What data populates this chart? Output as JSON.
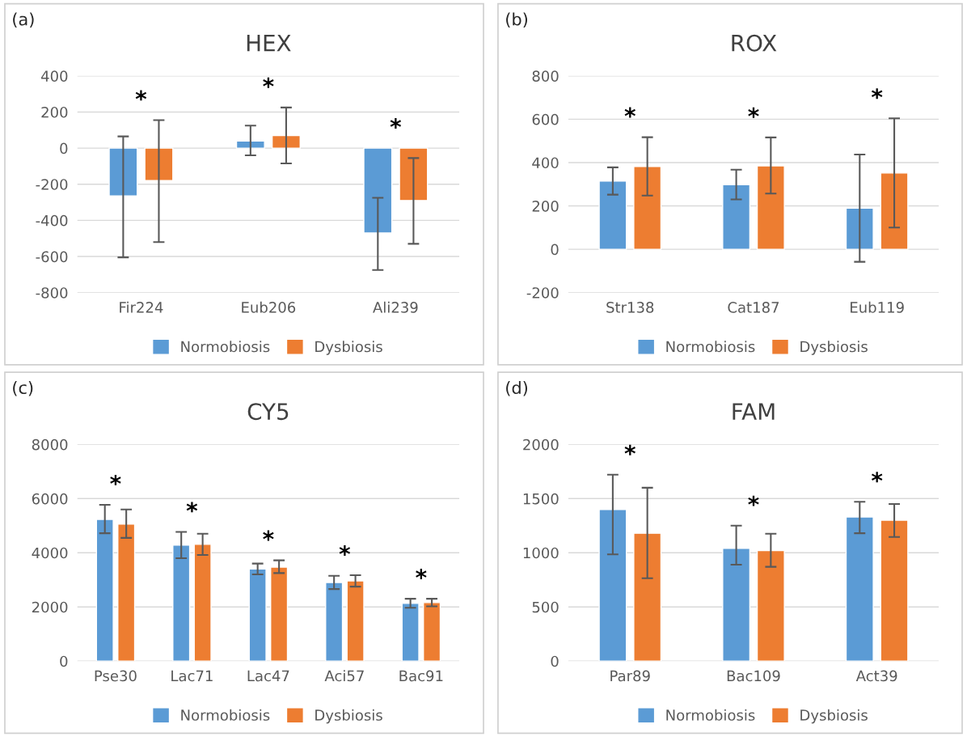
{
  "chart_data": [
    {
      "type": "bar",
      "title": "HEX",
      "categories": [
        "Fir224",
        "Eub206",
        "Ali239"
      ],
      "ylim": [
        -800,
        400
      ],
      "yticks": [
        -800,
        -600,
        -400,
        -200,
        0,
        200,
        400
      ],
      "grid": "y",
      "legend": "bottom",
      "series": [
        {
          "name": "Normobiosis",
          "color": "#5b9bd5",
          "values": [
            -265,
            40,
            -470
          ],
          "errors": [
            [
              -605,
              65
            ],
            [
              -40,
              125
            ],
            [
              -675,
              -275
            ]
          ]
        },
        {
          "name": "Dysbiosis",
          "color": "#ed7d31",
          "values": [
            -180,
            70,
            -290
          ],
          "errors": [
            [
              -520,
              155
            ],
            [
              -85,
              225
            ],
            [
              -530,
              -55
            ]
          ]
        }
      ],
      "annotations": [
        "(a)",
        "*",
        "*",
        "*"
      ]
    },
    {
      "type": "bar",
      "title": "ROX",
      "categories": [
        "Str138",
        "Cat187",
        "Eub119"
      ],
      "ylim": [
        -200,
        800
      ],
      "yticks": [
        -200,
        0,
        200,
        400,
        600,
        800
      ],
      "grid": "y",
      "legend": "bottom",
      "series": [
        {
          "name": "Normobiosis",
          "color": "#5b9bd5",
          "values": [
            315,
            298,
            190
          ],
          "errors": [
            [
              252,
              378
            ],
            [
              230,
              367
            ],
            [
              -58,
              437
            ]
          ]
        },
        {
          "name": "Dysbiosis",
          "color": "#ed7d31",
          "values": [
            382,
            385,
            352
          ],
          "errors": [
            [
              248,
              517
            ],
            [
              257,
              516
            ],
            [
              100,
              604
            ]
          ]
        }
      ],
      "annotations": [
        "(b)",
        "*",
        "*",
        "*"
      ]
    },
    {
      "type": "bar",
      "title": "CY5",
      "categories": [
        "Pse30",
        "Lac71",
        "Lac47",
        "Aci57",
        "Bac91"
      ],
      "ylim": [
        0,
        8000
      ],
      "yticks": [
        0,
        2000,
        4000,
        6000,
        8000
      ],
      "grid": "y",
      "legend": "bottom",
      "series": [
        {
          "name": "Normobiosis",
          "color": "#5b9bd5",
          "values": [
            5230,
            4280,
            3400,
            2900,
            2130
          ],
          "errors": [
            [
              4720,
              5770
            ],
            [
              3800,
              4770
            ],
            [
              3200,
              3600
            ],
            [
              2660,
              3150
            ],
            [
              1970,
              2300
            ]
          ]
        },
        {
          "name": "Dysbiosis",
          "color": "#ed7d31",
          "values": [
            5060,
            4310,
            3470,
            2960,
            2160
          ],
          "errors": [
            [
              4550,
              5600
            ],
            [
              3920,
              4700
            ],
            [
              3250,
              3720
            ],
            [
              2750,
              3170
            ],
            [
              2020,
              2300
            ]
          ]
        }
      ],
      "annotations": [
        "(c)",
        "*",
        "*",
        "*",
        "*",
        "*"
      ]
    },
    {
      "type": "bar",
      "title": "FAM",
      "categories": [
        "Par89",
        "Bac109",
        "Act39"
      ],
      "ylim": [
        0,
        2000
      ],
      "yticks": [
        0,
        500,
        1000,
        1500,
        2000
      ],
      "grid": "y",
      "legend": "bottom",
      "series": [
        {
          "name": "Normobiosis",
          "color": "#5b9bd5",
          "values": [
            1400,
            1040,
            1330
          ],
          "errors": [
            [
              985,
              1720
            ],
            [
              890,
              1250
            ],
            [
              1180,
              1470
            ]
          ]
        },
        {
          "name": "Dysbiosis",
          "color": "#ed7d31",
          "values": [
            1180,
            1020,
            1300
          ],
          "errors": [
            [
              765,
              1600
            ],
            [
              870,
              1175
            ],
            [
              1145,
              1450
            ]
          ]
        }
      ],
      "annotations": [
        "(d)",
        "*",
        "*",
        "*"
      ]
    }
  ]
}
